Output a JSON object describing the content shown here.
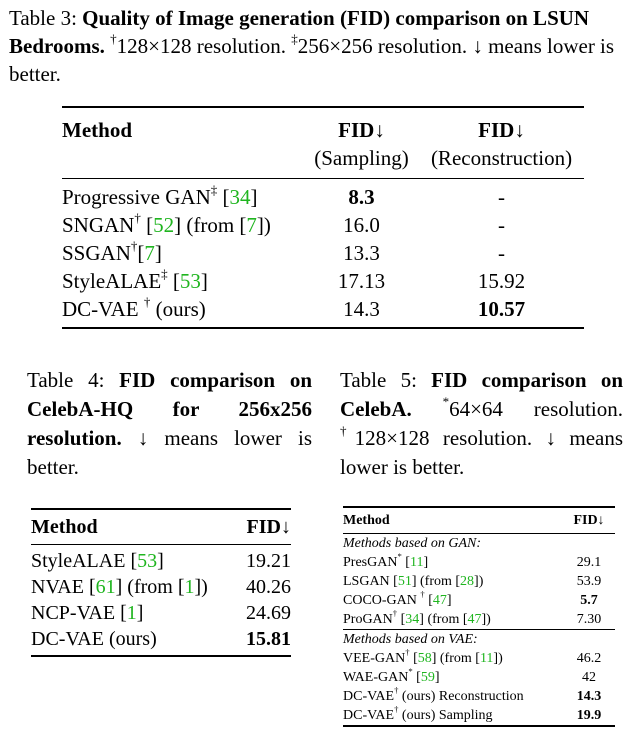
{
  "table3": {
    "caption_prefix": "Table 3:",
    "caption_bold": "Quality of Image generation (FID) comparison on LSUN Bedrooms.",
    "caption_note_dagger": "128×128 resolution.",
    "caption_note_ddagger": "256×256 resolution.",
    "caption_tail": "↓ means lower is better.",
    "header": {
      "method": "Method",
      "fid1": "FID↓",
      "fid1_sub": "(Sampling)",
      "fid2": "FID↓",
      "fid2_sub": "(Reconstruction)"
    },
    "rows": [
      {
        "name": "Progressive GAN",
        "mark": "‡",
        "cite": "34",
        "extra_cite": "",
        "sampling": "8.3",
        "reconstruction": "-"
      },
      {
        "name": "SNGAN",
        "mark": "†",
        "cite": "52",
        "extra_cite": "7",
        "sampling": "16.0",
        "reconstruction": "-"
      },
      {
        "name": "SSGAN",
        "mark": "†",
        "cite": "7",
        "extra_cite": "",
        "sampling": "13.3",
        "reconstruction": "-"
      },
      {
        "name": "StyleALAE",
        "mark": "‡",
        "cite": "53",
        "extra_cite": "",
        "sampling": "17.13",
        "reconstruction": "15.92"
      },
      {
        "name": "DC-VAE",
        "mark": "†",
        "suffix": "(ours)",
        "sampling": "14.3",
        "reconstruction": "10.57"
      }
    ]
  },
  "table4": {
    "caption_prefix": "Table 4:",
    "caption_bold": "FID comparison on CelebA-HQ for 256x256 resolution.",
    "caption_tail": "↓ means lower is better.",
    "header": {
      "method": "Method",
      "fid": "FID↓"
    },
    "rows": [
      {
        "name": "StyleALAE",
        "cite": "53",
        "extra_cite": "",
        "fid": "19.21"
      },
      {
        "name": "NVAE",
        "cite": "61",
        "extra_cite": "1",
        "fid": "40.26"
      },
      {
        "name": "NCP-VAE",
        "cite": "1",
        "extra_cite": "",
        "fid": "24.69"
      },
      {
        "name": "DC-VAE (ours)",
        "fid": "15.81"
      }
    ]
  },
  "table5": {
    "caption_prefix": "Table 5:",
    "caption_bold": "FID comparison on CelebA.",
    "caption_note_star": "64×64 resolution.",
    "caption_note_dagger": "128×128 resolution.",
    "caption_tail": "↓ means lower is better.",
    "header": {
      "method": "Method",
      "fid": "FID↓"
    },
    "group_gan": "Methods based on GAN:",
    "gan_rows": [
      {
        "name": "PresGAN",
        "mark": "*",
        "cite": "11",
        "extra_cite": "",
        "fid": "29.1"
      },
      {
        "name": "LSGAN",
        "mark": "",
        "cite": "51",
        "extra_cite": "28",
        "fid": "53.9"
      },
      {
        "name": "COCO-GAN",
        "mark": "†",
        "cite": "47",
        "extra_cite": "",
        "fid": "5.7"
      },
      {
        "name": "ProGAN",
        "mark": "†",
        "cite": "34",
        "extra_cite": "47",
        "fid": "7.30"
      }
    ],
    "group_vae": "Methods based on VAE:",
    "vae_rows": [
      {
        "name": "VEE-GAN",
        "mark": "†",
        "cite": "58",
        "extra_cite": "11",
        "fid": "46.2"
      },
      {
        "name": "WAE-GAN",
        "mark": "*",
        "cite": "59",
        "extra_cite": "",
        "fid": "42"
      },
      {
        "name": "DC-VAE",
        "mark": "†",
        "suffix": "(ours) Reconstruction",
        "fid": "14.3"
      },
      {
        "name": "DC-VAE",
        "mark": "†",
        "suffix": "(ours) Sampling",
        "fid": "19.9"
      }
    ]
  }
}
